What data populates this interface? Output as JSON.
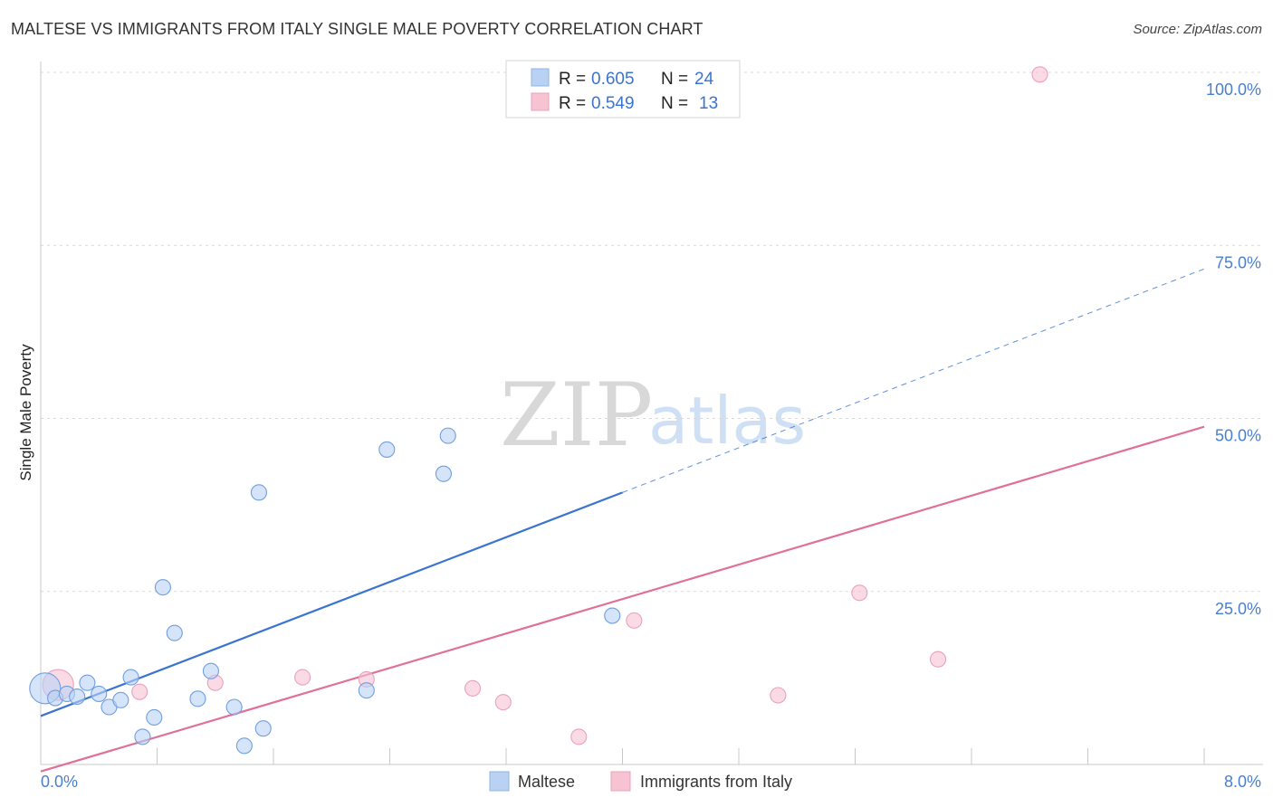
{
  "title": "MALTESE VS IMMIGRANTS FROM ITALY SINGLE MALE POVERTY CORRELATION CHART",
  "source": "Source: ZipAtlas.com",
  "colors": {
    "blue": "#3a74d0",
    "blue_fill": "#b9d2f3",
    "pink": "#e06f9a",
    "pink_fill": "#f7c3d3",
    "grid": "#d8d8d8"
  },
  "watermark": {
    "zip": "ZIP",
    "atlas": "atlas"
  },
  "legend": {
    "rows": [
      {
        "r_label": "R = ",
        "r_value": "0.605",
        "n_label": "N = ",
        "n_value": "24",
        "swatch": "blue"
      },
      {
        "r_label": "R = ",
        "r_value": "0.549",
        "n_label": "N = ",
        "n_value": "13",
        "swatch": "pink"
      }
    ]
  },
  "chart_data": {
    "type": "scatter",
    "title": "MALTESE VS IMMIGRANTS FROM ITALY SINGLE MALE POVERTY CORRELATION CHART",
    "xlabel": "",
    "ylabel": "Single Male Poverty",
    "xlim": [
      0,
      8
    ],
    "ylim": [
      0,
      100
    ],
    "x_ticks": [
      "0.0%",
      "8.0%"
    ],
    "y_ticks": [
      {
        "value": 25,
        "label": "25.0%"
      },
      {
        "value": 50,
        "label": "50.0%"
      },
      {
        "value": 75,
        "label": "75.0%"
      },
      {
        "value": 100,
        "label": "100.0%"
      }
    ],
    "series": [
      {
        "name": "Maltese",
        "color": "blue",
        "points": [
          [
            0.03,
            11.0,
            "large"
          ],
          [
            0.1,
            9.6
          ],
          [
            0.18,
            10.2
          ],
          [
            0.25,
            9.8
          ],
          [
            0.32,
            11.8
          ],
          [
            0.4,
            10.2
          ],
          [
            0.47,
            8.3
          ],
          [
            0.55,
            9.3
          ],
          [
            0.62,
            12.6
          ],
          [
            0.7,
            4.0
          ],
          [
            0.78,
            6.8
          ],
          [
            0.84,
            25.6
          ],
          [
            0.92,
            19.0
          ],
          [
            1.08,
            9.5
          ],
          [
            1.17,
            13.5
          ],
          [
            1.33,
            8.3
          ],
          [
            1.4,
            2.7
          ],
          [
            1.5,
            39.3
          ],
          [
            1.53,
            5.2
          ],
          [
            2.24,
            10.7
          ],
          [
            2.38,
            45.5
          ],
          [
            2.77,
            42.0
          ],
          [
            2.8,
            47.5
          ],
          [
            3.93,
            21.5
          ]
        ],
        "trend": {
          "x0": 0,
          "y0": 7.0,
          "x_solid_end": 4.0,
          "y_solid_end": 39.3,
          "x1": 8.0,
          "y1": 71.6
        }
      },
      {
        "name": "Immigrants from Italy",
        "color": "pink",
        "points": [
          [
            0.12,
            11.5,
            "large"
          ],
          [
            0.68,
            10.5
          ],
          [
            1.2,
            11.8
          ],
          [
            1.8,
            12.6
          ],
          [
            2.24,
            12.3
          ],
          [
            2.97,
            11.0
          ],
          [
            3.18,
            9.0
          ],
          [
            3.7,
            4.0
          ],
          [
            4.08,
            20.8
          ],
          [
            5.07,
            10.0
          ],
          [
            5.63,
            24.8
          ],
          [
            6.17,
            15.2
          ],
          [
            6.87,
            99.7
          ]
        ],
        "trend": {
          "x0": 0,
          "y0": -1.0,
          "x1": 8.0,
          "y1": 48.8
        }
      }
    ],
    "legend_entries": [
      "Maltese",
      "Immigrants from Italy"
    ]
  }
}
